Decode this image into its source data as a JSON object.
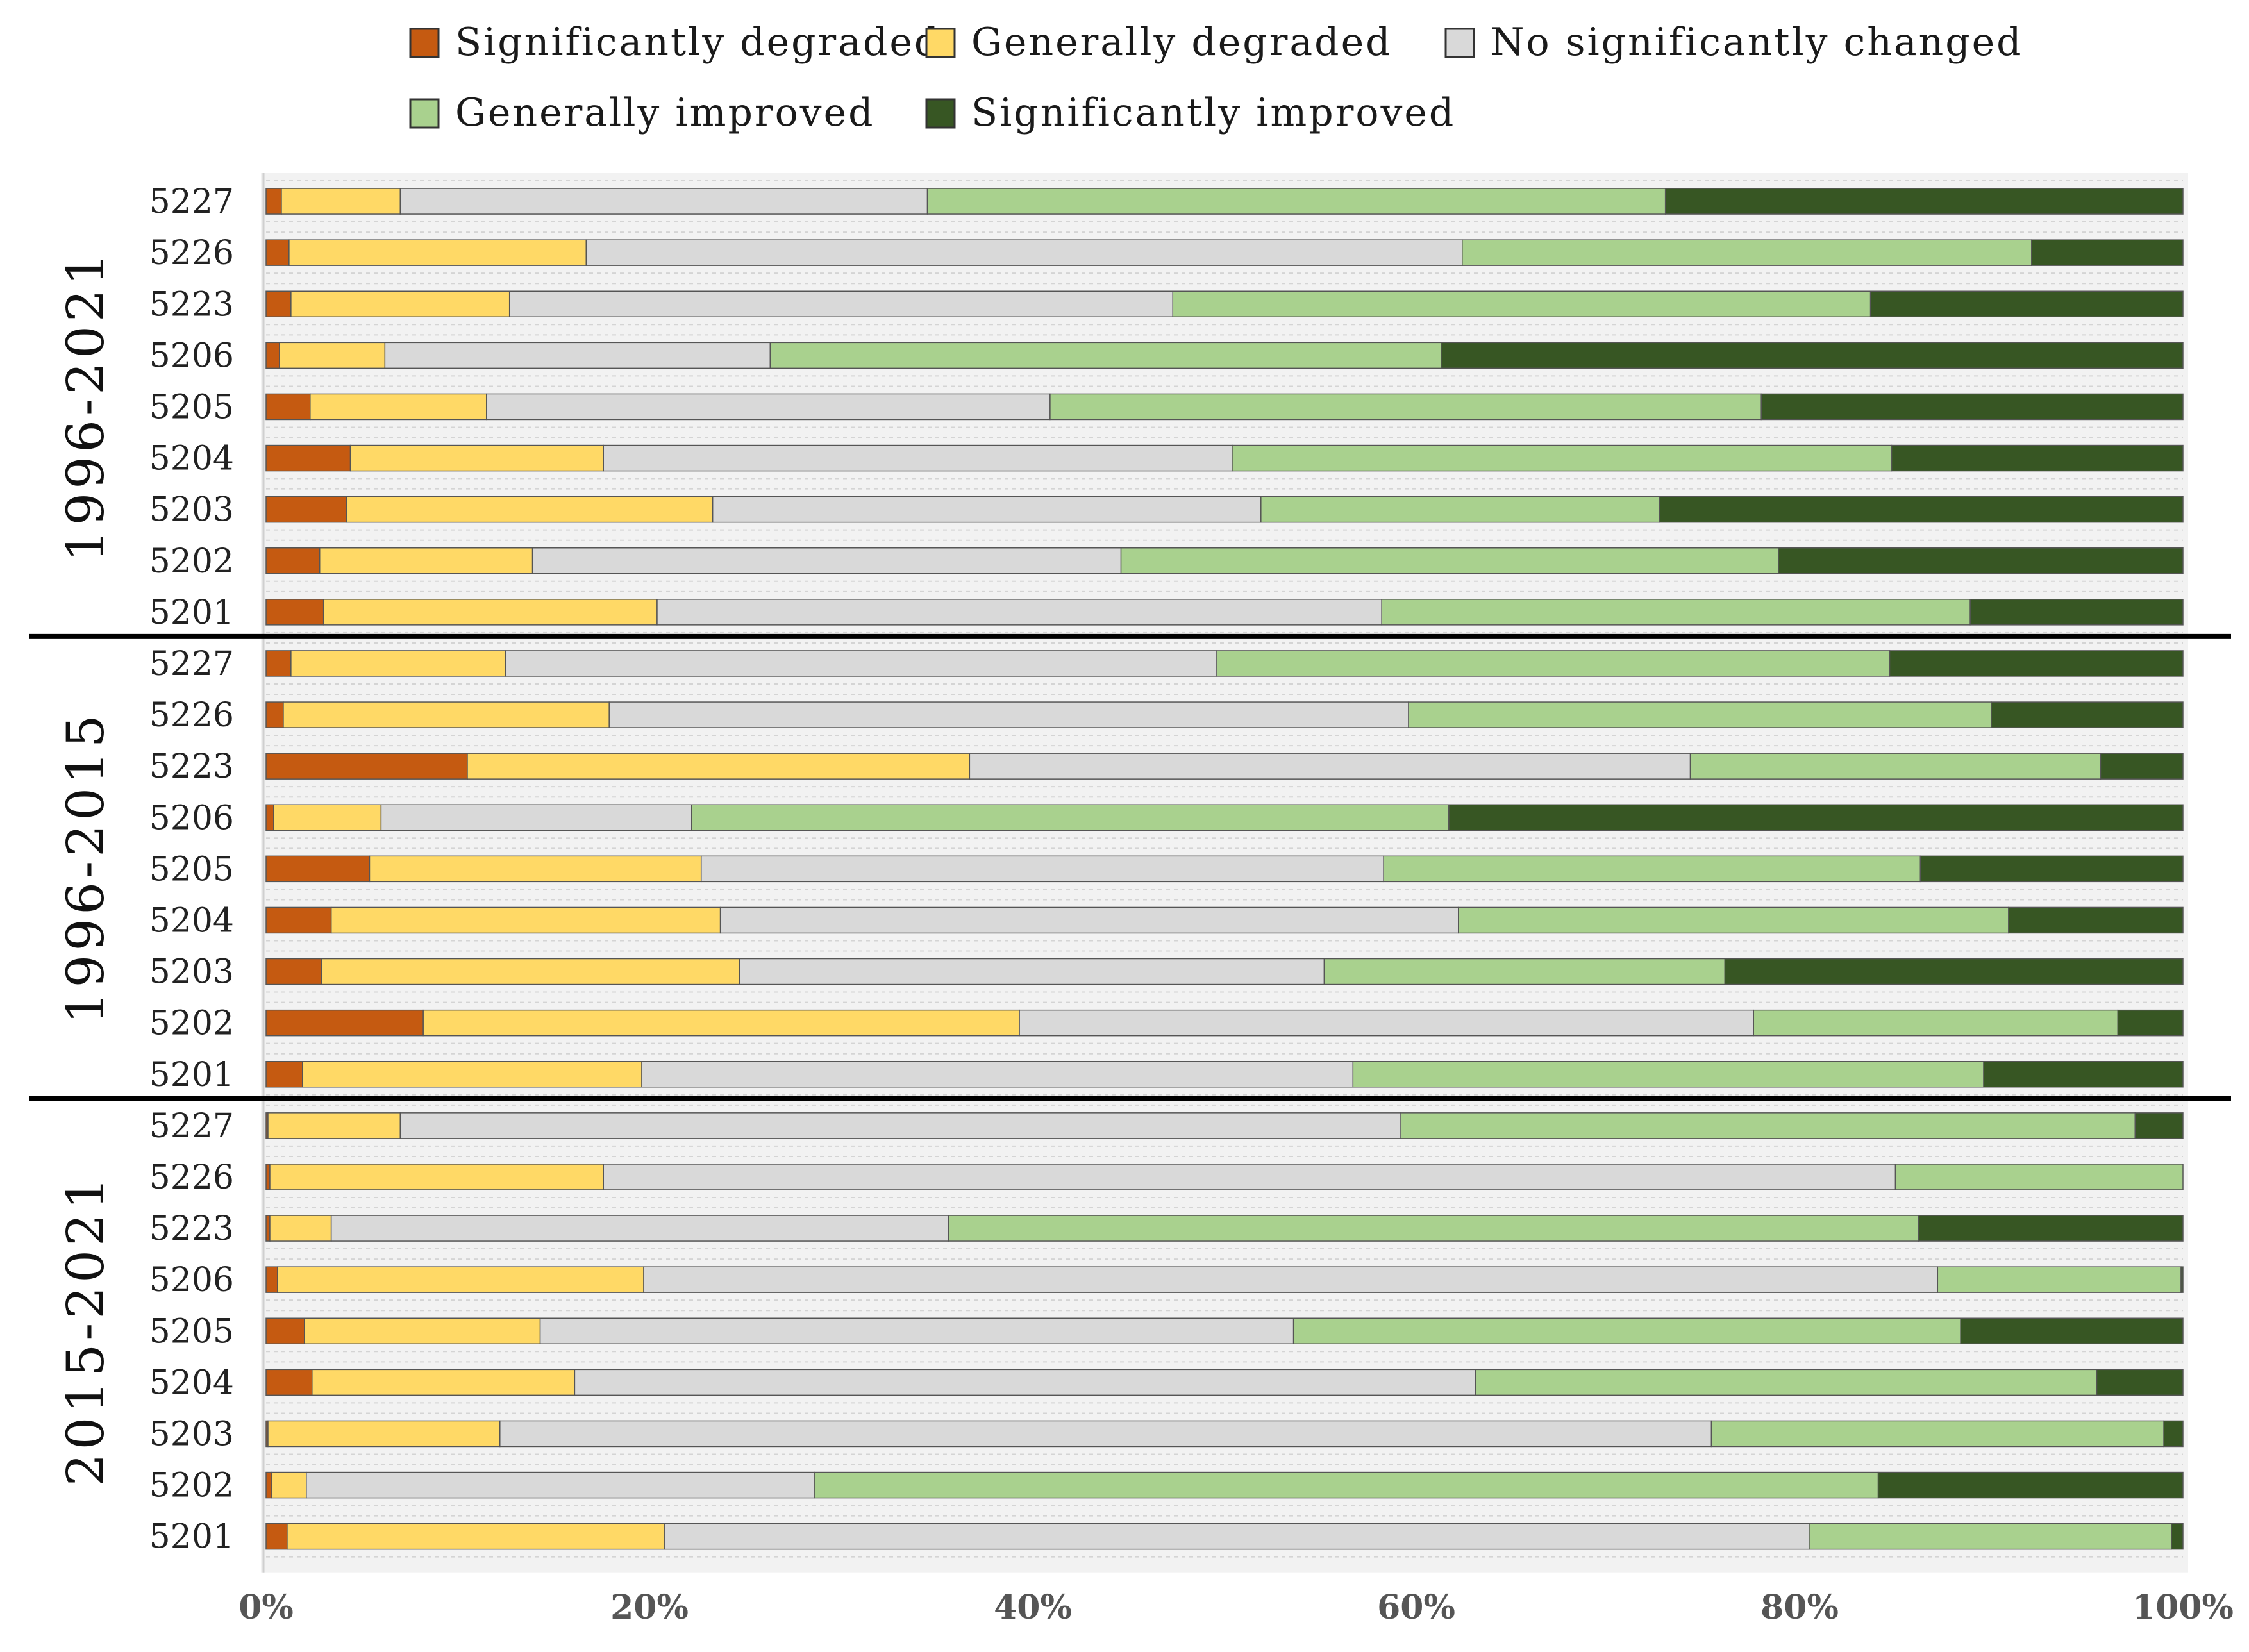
{
  "chart_data": {
    "type": "bar",
    "orientation": "horizontal",
    "stacked": "percent",
    "title": "",
    "xlabel": "",
    "ylabel": "",
    "xlim": [
      0,
      100
    ],
    "x_ticks": [
      "0%",
      "20%",
      "40%",
      "60%",
      "80%",
      "100%"
    ],
    "legend": {
      "placement": "top",
      "entries": [
        {
          "name": "Significantly degraded",
          "color": "#c55a11"
        },
        {
          "name": "Generally degraded",
          "color": "#ffd966"
        },
        {
          "name": "No significantly changed",
          "color": "#d9d9d9"
        },
        {
          "name": "Generally improved",
          "color": "#a9d18e"
        },
        {
          "name": "Significantly improved",
          "color": "#375623"
        }
      ]
    },
    "groups": [
      {
        "label": "1996-2021",
        "bars": [
          {
            "category": "5227",
            "values": [
              0.8,
              6.2,
              27.5,
              38.5,
              27.0
            ]
          },
          {
            "category": "5226",
            "values": [
              1.2,
              15.5,
              45.7,
              29.7,
              7.9
            ]
          },
          {
            "category": "5223",
            "values": [
              1.3,
              11.4,
              34.6,
              36.4,
              16.3
            ]
          },
          {
            "category": "5206",
            "values": [
              0.7,
              5.5,
              20.1,
              35.0,
              38.7
            ]
          },
          {
            "category": "5205",
            "values": [
              2.3,
              9.2,
              29.4,
              37.1,
              22.0
            ]
          },
          {
            "category": "5204",
            "values": [
              4.4,
              13.2,
              32.8,
              34.4,
              15.2
            ]
          },
          {
            "category": "5203",
            "values": [
              4.2,
              19.1,
              28.6,
              20.8,
              27.3
            ]
          },
          {
            "category": "5202",
            "values": [
              2.8,
              11.1,
              30.7,
              34.3,
              21.1
            ]
          },
          {
            "category": "5201",
            "values": [
              3.0,
              17.4,
              37.8,
              30.7,
              11.1
            ]
          }
        ]
      },
      {
        "label": "1996-2015",
        "bars": [
          {
            "category": "5227",
            "values": [
              1.3,
              11.2,
              37.1,
              35.1,
              15.3
            ]
          },
          {
            "category": "5226",
            "values": [
              0.9,
              17.0,
              41.7,
              30.4,
              10.0
            ]
          },
          {
            "category": "5223",
            "values": [
              10.5,
              26.2,
              37.6,
              21.4,
              4.3
            ]
          },
          {
            "category": "5206",
            "values": [
              0.4,
              5.6,
              16.2,
              39.5,
              38.3
            ]
          },
          {
            "category": "5205",
            "values": [
              5.4,
              17.3,
              35.6,
              28.0,
              13.7
            ]
          },
          {
            "category": "5204",
            "values": [
              3.4,
              20.3,
              38.5,
              28.7,
              9.1
            ]
          },
          {
            "category": "5203",
            "values": [
              2.9,
              21.8,
              30.5,
              20.9,
              23.9
            ]
          },
          {
            "category": "5202",
            "values": [
              8.2,
              31.1,
              38.3,
              19.0,
              3.4
            ]
          },
          {
            "category": "5201",
            "values": [
              1.9,
              17.7,
              37.1,
              32.9,
              10.4
            ]
          }
        ]
      },
      {
        "label": "2015-2021",
        "bars": [
          {
            "category": "5227",
            "values": [
              0.1,
              6.9,
              52.2,
              38.3,
              2.5
            ]
          },
          {
            "category": "5226",
            "values": [
              0.2,
              17.4,
              67.4,
              15.0,
              0.0
            ]
          },
          {
            "category": "5223",
            "values": [
              0.2,
              3.2,
              32.2,
              50.6,
              13.8
            ]
          },
          {
            "category": "5206",
            "values": [
              0.6,
              19.1,
              67.5,
              12.7,
              0.1
            ]
          },
          {
            "category": "5205",
            "values": [
              2.0,
              12.3,
              39.3,
              34.8,
              11.6
            ]
          },
          {
            "category": "5204",
            "values": [
              2.4,
              13.7,
              47.0,
              32.4,
              4.5
            ]
          },
          {
            "category": "5203",
            "values": [
              0.1,
              12.1,
              63.2,
              23.6,
              1.0
            ]
          },
          {
            "category": "5202",
            "values": [
              0.3,
              1.8,
              26.5,
              55.5,
              15.9
            ]
          },
          {
            "category": "5201",
            "values": [
              1.1,
              19.7,
              59.7,
              18.9,
              0.6
            ]
          }
        ]
      }
    ]
  }
}
